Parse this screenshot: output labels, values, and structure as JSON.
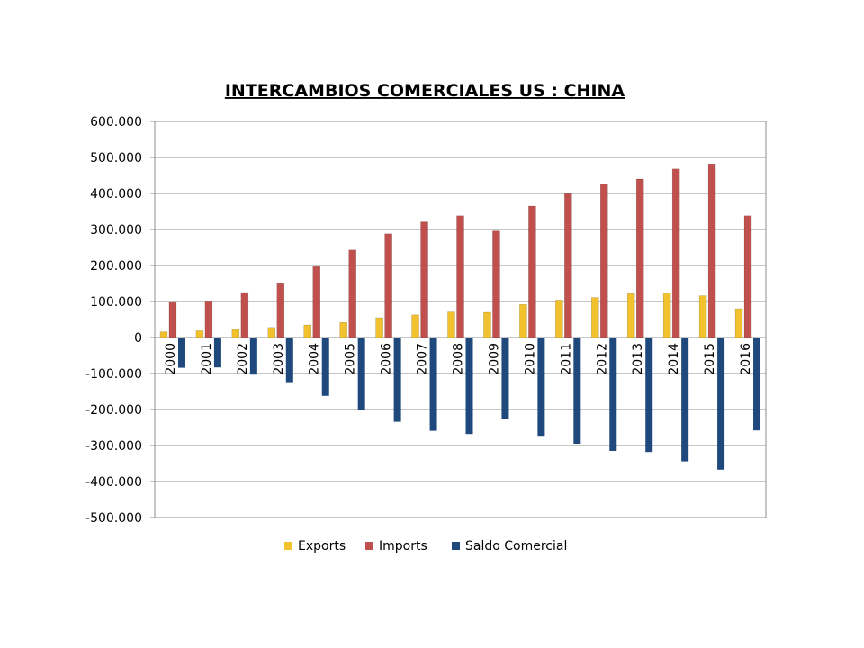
{
  "chart_data": {
    "type": "bar",
    "title": "INTERCAMBIOS COMERCIALES US : CHINA",
    "xlabel": "",
    "ylabel": "",
    "ylim": [
      -500000,
      600000
    ],
    "yticks": [
      "600.000",
      "500.000",
      "400.000",
      "300.000",
      "200.000",
      "100.000",
      "0",
      "-100.000",
      "-200.000",
      "-300.000",
      "-400.000",
      "-500.000"
    ],
    "grid": true,
    "legend_position": "bottom",
    "categories": [
      "2000",
      "2001",
      "2002",
      "2003",
      "2004",
      "2005",
      "2006",
      "2007",
      "2008",
      "2009",
      "2010",
      "2011",
      "2012",
      "2013",
      "2014",
      "2015",
      "2016"
    ],
    "series": [
      {
        "name": "Exports",
        "color": "#F2C12E",
        "values": [
          16000,
          19000,
          22000,
          28000,
          35000,
          42000,
          55000,
          63000,
          71000,
          70000,
          92000,
          104000,
          111000,
          122000,
          124000,
          116000,
          80000
        ]
      },
      {
        "name": "Imports",
        "color": "#C0504D",
        "values": [
          100000,
          102000,
          125000,
          152000,
          197000,
          243000,
          288000,
          321000,
          338000,
          296000,
          365000,
          399000,
          426000,
          440000,
          468000,
          482000,
          338000
        ]
      },
      {
        "name": "Saldo Comercial",
        "color": "#1F497D",
        "values": [
          -84000,
          -83000,
          -103000,
          -124000,
          -162000,
          -202000,
          -234000,
          -259000,
          -268000,
          -227000,
          -273000,
          -295000,
          -315000,
          -318000,
          -344000,
          -367000,
          -258000
        ]
      }
    ]
  }
}
